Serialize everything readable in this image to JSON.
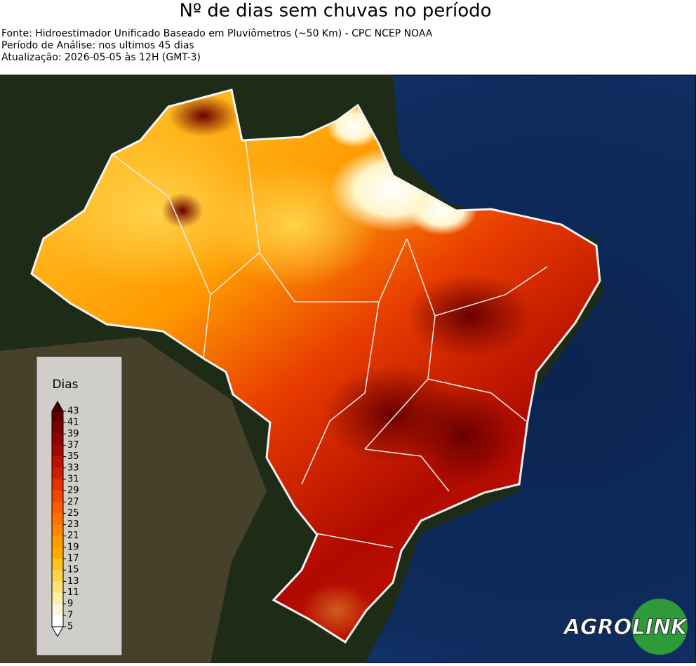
{
  "header": {
    "title": "Nº de dias sem chuvas no período",
    "lines": [
      "Fonte: Hidroestimador Unificado Baseado em Pluviômetros (~50 Km) - CPC NCEP NOAA",
      "Período de Análise: nos ultimos 45 dias",
      "Atualização: 2026-05-05 às 12H (GMT-3)"
    ]
  },
  "colorbar": {
    "title": "Dias",
    "ticks": [
      5,
      7,
      9,
      11,
      13,
      15,
      17,
      19,
      21,
      23,
      25,
      27,
      29,
      31,
      33,
      35,
      37,
      39,
      41,
      43
    ],
    "colors": [
      "#ffffff",
      "#fff8d8",
      "#fff0a8",
      "#ffe478",
      "#ffd448",
      "#ffc21e",
      "#ffae00",
      "#ff9a00",
      "#ff8500",
      "#ff7000",
      "#ff5a00",
      "#f54400",
      "#e63000",
      "#d21e00",
      "#bc1000",
      "#a50800",
      "#8e0403",
      "#780202",
      "#620000"
    ]
  },
  "logo": {
    "left": "AGRO",
    "right": "LINK"
  }
}
